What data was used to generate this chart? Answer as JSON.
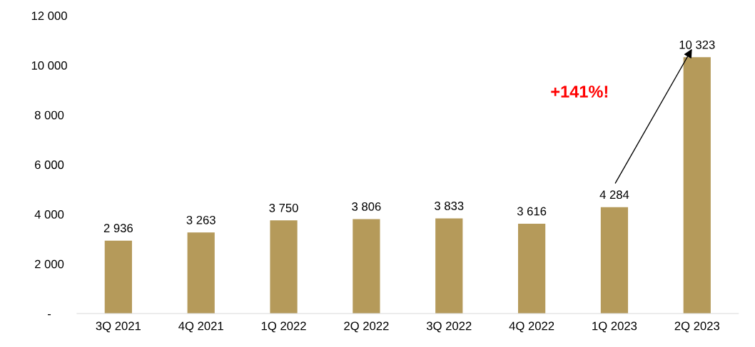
{
  "chart_data": {
    "type": "bar",
    "categories": [
      "3Q 2021",
      "4Q 2021",
      "1Q 2022",
      "2Q 2022",
      "3Q 2022",
      "4Q 2022",
      "1Q 2023",
      "2Q 2023"
    ],
    "values": [
      2936,
      3263,
      3750,
      3806,
      3833,
      3616,
      4284,
      10323
    ],
    "value_labels": [
      "2 936",
      "3 263",
      "3 750",
      "3 806",
      "3 833",
      "3 616",
      "4 284",
      "10 323"
    ],
    "color": "#b59a5a",
    "ylim": [
      0,
      12000
    ],
    "yticks": [
      {
        "value": 0,
        "label": "-"
      },
      {
        "value": 2000,
        "label": "2 000"
      },
      {
        "value": 4000,
        "label": "4 000"
      },
      {
        "value": 6000,
        "label": "6 000"
      },
      {
        "value": 8000,
        "label": "8 000"
      },
      {
        "value": 10000,
        "label": "10 000"
      },
      {
        "value": 12000,
        "label": "12 000"
      }
    ],
    "annotations": [
      "+141%!"
    ],
    "grid": false,
    "legend": false
  }
}
